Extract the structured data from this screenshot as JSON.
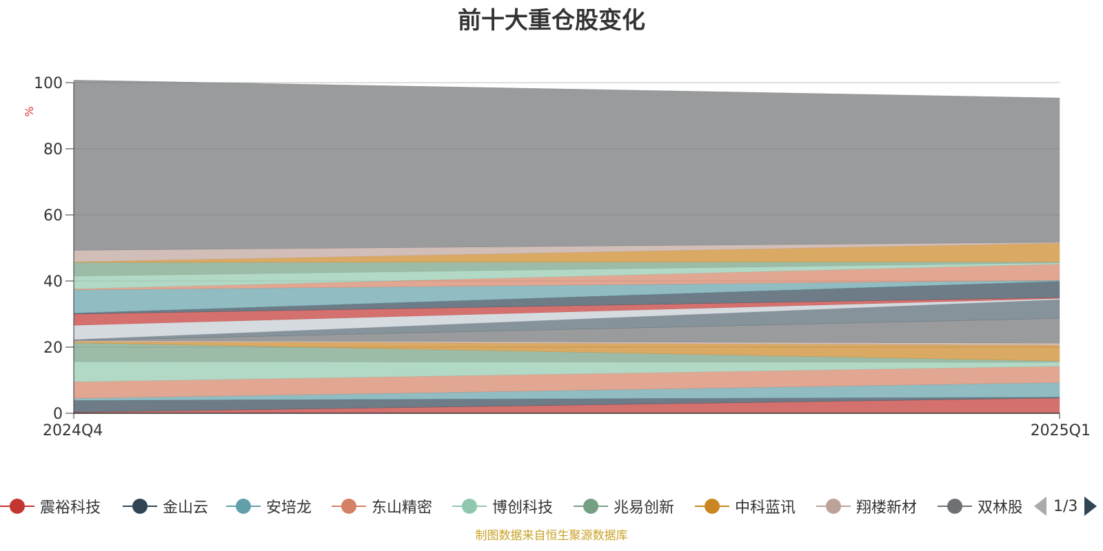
{
  "chart_data": {
    "type": "area",
    "stacked": true,
    "title": "前十大重仓股变化",
    "ylabel": "%",
    "xlabel": "",
    "categories": [
      "2024Q4",
      "2025Q1"
    ],
    "ylim": [
      0,
      100
    ],
    "yticks": [
      0,
      20,
      40,
      60,
      80,
      100
    ],
    "grid": true,
    "legend_position": "bottom",
    "series": [
      {
        "name": "震裕科技",
        "color": "#c23531",
        "values": [
          0.3,
          4.6
        ]
      },
      {
        "name": "金山云",
        "color": "#2f4554",
        "values": [
          3.6,
          0.3
        ]
      },
      {
        "name": "安培龙",
        "color": "#61a0a8",
        "values": [
          0.6,
          4.4
        ]
      },
      {
        "name": "东山精密",
        "color": "#d48265",
        "values": [
          5.0,
          4.9
        ]
      },
      {
        "name": "博创科技",
        "color": "#91c7ae",
        "values": [
          6.1,
          1.2
        ]
      },
      {
        "name": "兆易创新",
        "color": "#749f83",
        "values": [
          5.7,
          0.4
        ]
      },
      {
        "name": "中科蓝讯",
        "color": "#ca8622",
        "values": [
          0.4,
          4.8
        ]
      },
      {
        "name": "翔楼新材",
        "color": "#bda29a",
        "values": [
          0.3,
          0.6
        ]
      },
      {
        "name": "双林股份",
        "color": "#6e7074",
        "values": [
          0.0,
          7.5
        ]
      },
      {
        "name": "",
        "color": "#546570",
        "values": [
          0.3,
          5.7
        ]
      },
      {
        "name": "",
        "color": "#c4ccd3",
        "values": [
          4.3,
          0.3
        ]
      },
      {
        "name": "",
        "color": "#c23531",
        "values": [
          3.4,
          0.3
        ]
      },
      {
        "name": "",
        "color": "#2f4554",
        "values": [
          0.3,
          4.9
        ]
      },
      {
        "name": "",
        "color": "#61a0a8",
        "values": [
          7.0,
          0.3
        ]
      },
      {
        "name": "",
        "color": "#d48265",
        "values": [
          0.3,
          4.9
        ]
      },
      {
        "name": "",
        "color": "#91c7ae",
        "values": [
          3.9,
          0.4
        ]
      },
      {
        "name": "",
        "color": "#749f83",
        "values": [
          4.1,
          0.3
        ]
      },
      {
        "name": "",
        "color": "#ca8622",
        "values": [
          0.2,
          5.6
        ]
      },
      {
        "name": "",
        "color": "#bda29a",
        "values": [
          3.5,
          0.3
        ]
      },
      {
        "name": "",
        "color": "#6e7074",
        "values": [
          51.5,
          43.7
        ]
      }
    ]
  },
  "legend": {
    "page": "1/3"
  },
  "source_note": "制图数据来自恒生聚源数据库"
}
